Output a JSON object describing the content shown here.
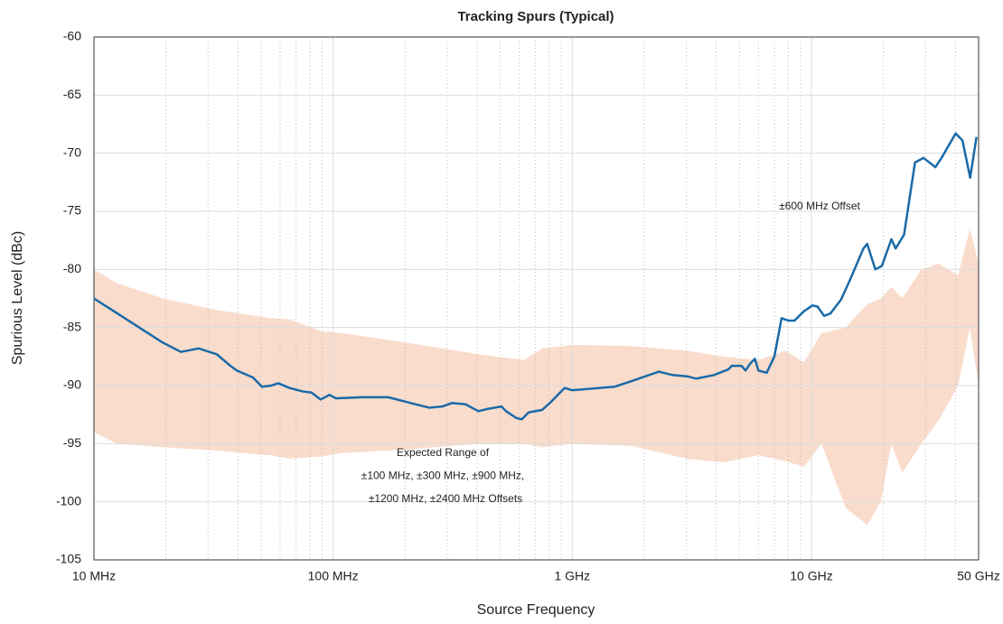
{
  "chart_data": {
    "type": "line",
    "title": "Tracking Spurs (Typical)",
    "xlabel": "Source Frequency",
    "ylabel": "Spurious Level (dBc)",
    "xscale": "log",
    "xlim": [
      10,
      50000
    ],
    "xticks": [
      {
        "value": 10,
        "label": "10 MHz"
      },
      {
        "value": 100,
        "label": "100 MHz"
      },
      {
        "value": 1000,
        "label": "1 GHz"
      },
      {
        "value": 10000,
        "label": "10 GHz"
      },
      {
        "value": 50000,
        "label": "50 GHz"
      }
    ],
    "xminorticks": [
      20,
      30,
      40,
      50,
      60,
      70,
      80,
      90,
      200,
      300,
      400,
      500,
      600,
      700,
      800,
      900,
      2000,
      3000,
      4000,
      5000,
      6000,
      7000,
      8000,
      9000,
      20000,
      30000,
      40000
    ],
    "ylim": [
      -105,
      -60
    ],
    "yticks": [
      -105,
      -100,
      -95,
      -90,
      -85,
      -80,
      -75,
      -70,
      -65,
      -60
    ],
    "grid": true,
    "series": [
      {
        "name": "±600 MHz Offset",
        "color": "#1a6aa8",
        "x": [
          10,
          19.4,
          23.1,
          27.4,
          32.6,
          37.2,
          39.5,
          46.2,
          50.4,
          55,
          59,
          65.6,
          74.6,
          81.3,
          88.6,
          96.6,
          102.7,
          131,
          170,
          220,
          252,
          286,
          314,
          357,
          405,
          444,
          506,
          528,
          585,
          615,
          657,
          747,
          815,
          889,
          929,
          1000,
          1500,
          1780,
          2300,
          2640,
          3020,
          3300,
          3900,
          4500,
          4640,
          5100,
          5300,
          5550,
          5800,
          6000,
          6500,
          7000,
          7500,
          7990,
          8500,
          9300,
          10100,
          10600,
          11300,
          12000,
          13300,
          14500,
          16500,
          17100,
          18500,
          19700,
          21600,
          22500,
          24400,
          27100,
          29400,
          33000,
          35000,
          40100,
          42800,
          46100,
          49000
        ],
        "values": [
          -82.5,
          -86.3,
          -87.1,
          -86.8,
          -87.3,
          -88.3,
          -88.7,
          -89.3,
          -90.1,
          -90.0,
          -89.8,
          -90.2,
          -90.5,
          -90.6,
          -91.2,
          -90.8,
          -91.1,
          -91.0,
          -91.0,
          -91.6,
          -91.9,
          -91.8,
          -91.5,
          -91.6,
          -92.2,
          -92.0,
          -91.8,
          -92.2,
          -92.8,
          -92.9,
          -92.3,
          -92.1,
          -91.4,
          -90.6,
          -90.2,
          -90.4,
          -90.1,
          -89.6,
          -88.8,
          -89.1,
          -89.2,
          -89.4,
          -89.1,
          -88.6,
          -88.3,
          -88.3,
          -88.7,
          -88.1,
          -87.7,
          -88.7,
          -88.9,
          -87.5,
          -84.2,
          -84.4,
          -84.4,
          -83.6,
          -83.1,
          -83.2,
          -84.0,
          -83.8,
          -82.6,
          -80.9,
          -78.2,
          -77.8,
          -80.0,
          -79.7,
          -77.4,
          -78.2,
          -77.0,
          -70.8,
          -70.4,
          -71.2,
          -70.4,
          -68.3,
          -68.9,
          -72.1,
          -68.6
        ]
      }
    ],
    "band": {
      "label": [
        "Expected Range of",
        "±100 MHz, ±300 MHz, ±900 MHz,",
        "±1200 MHz, ±2400 MHz Offsets"
      ],
      "color": "#f9dccc",
      "x": [
        10,
        12.5,
        19.4,
        32.6,
        55,
        65.6,
        88.6,
        110,
        203,
        405,
        626,
        750,
        1000,
        1780,
        3020,
        4300,
        6000,
        7800,
        9300,
        11000,
        13900,
        17100,
        19500,
        21600,
        24000,
        28800,
        34000,
        41000,
        46000,
        50000
      ],
      "upper": [
        -80,
        -81.2,
        -82.5,
        -83.5,
        -84.2,
        -84.3,
        -85.3,
        -85.5,
        -86.3,
        -87.3,
        -87.8,
        -86.8,
        -86.5,
        -86.6,
        -87,
        -87.5,
        -87.8,
        -87,
        -88,
        -85.5,
        -85,
        -83,
        -82.5,
        -81.5,
        -82.5,
        -80,
        -79.5,
        -80.5,
        -76.5,
        -79.5
      ],
      "lower": [
        -94,
        -95,
        -95.3,
        -95.6,
        -96,
        -96.3,
        -96.1,
        -95.8,
        -95.5,
        -95,
        -95,
        -95.3,
        -95,
        -95.2,
        -96.3,
        -96.6,
        -96,
        -96.5,
        -97,
        -95,
        -100.5,
        -102,
        -100,
        -95,
        -97.5,
        -95,
        -93,
        -90,
        -85,
        -90
      ]
    }
  }
}
